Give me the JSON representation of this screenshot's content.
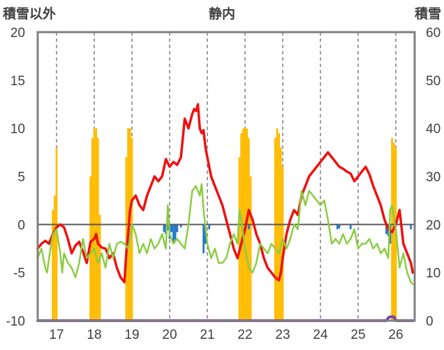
{
  "chart_data": {
    "type": "combo",
    "title": "静内",
    "left_axis_label": "積雪以外",
    "right_axis_label": "積雪",
    "left_ylim": [
      -10,
      20
    ],
    "left_ticks": [
      "-10",
      "-5",
      "0",
      "5",
      "10",
      "15",
      "20"
    ],
    "right_ylim": [
      0,
      60
    ],
    "right_ticks": [
      "0",
      "10",
      "20",
      "30",
      "40",
      "50",
      "60"
    ],
    "x_range": [
      16.5,
      26.5
    ],
    "x_ticks": [
      "17",
      "18",
      "19",
      "20",
      "21",
      "22",
      "23",
      "24",
      "25",
      "26"
    ],
    "grid": "vertical dashed at each day",
    "colors": {
      "red_line": "#ee1111",
      "green_line": "#8ccc44",
      "snow_bars": "#ffbb00",
      "blue_bars": "#2277cc",
      "purple_line": "#7a44a0",
      "axis": "#808080",
      "grid": "#404040"
    },
    "series": [
      {
        "kind": "line",
        "color_key": "red_line",
        "axis": "left",
        "x": [
          16.5,
          16.6,
          16.7,
          16.8,
          16.9,
          17.0,
          17.1,
          17.2,
          17.3,
          17.4,
          17.5,
          17.6,
          17.7,
          17.8,
          17.9,
          18.0,
          18.05,
          18.1,
          18.2,
          18.3,
          18.4,
          18.5,
          18.6,
          18.7,
          18.8,
          18.85,
          18.9,
          18.95,
          19.0,
          19.1,
          19.2,
          19.3,
          19.4,
          19.5,
          19.6,
          19.7,
          19.8,
          19.9,
          20.0,
          20.1,
          20.2,
          20.3,
          20.4,
          20.5,
          20.6,
          20.65,
          20.7,
          20.75,
          20.8,
          20.85,
          20.9,
          20.95,
          21.0,
          21.05,
          21.1,
          21.2,
          21.3,
          21.4,
          21.5,
          21.6,
          21.7,
          21.8,
          21.9,
          22.0,
          22.1,
          22.2,
          22.3,
          22.4,
          22.5,
          22.6,
          22.7,
          22.8,
          22.9,
          22.95,
          23.0,
          23.1,
          23.2,
          23.3,
          23.4,
          23.5,
          23.6,
          23.7,
          23.8,
          23.9,
          24.0,
          24.1,
          24.2,
          24.3,
          24.4,
          24.5,
          24.6,
          24.7,
          24.8,
          24.9,
          25.0,
          25.1,
          25.2,
          25.3,
          25.4,
          25.5,
          25.6,
          25.7,
          25.8,
          25.9,
          26.0,
          26.1,
          26.2,
          26.3,
          26.4,
          26.45
        ],
        "y": [
          -2.5,
          -2.0,
          -1.7,
          -2.0,
          -1.0,
          -0.3,
          0.0,
          -0.3,
          -1.5,
          -3.0,
          -2.2,
          -1.8,
          -2.8,
          -4.0,
          -1.8,
          -1.5,
          -1.0,
          -2.0,
          -2.4,
          -2.5,
          -3.5,
          -3.0,
          -4.5,
          -5.5,
          -6.0,
          -3.0,
          -1.0,
          1.5,
          2.5,
          3.0,
          2.0,
          1.5,
          3.0,
          4.0,
          5.0,
          4.5,
          5.0,
          6.8,
          6.0,
          6.5,
          6.2,
          7.0,
          11.0,
          10.0,
          11.5,
          12.0,
          11.8,
          12.5,
          10.0,
          9.5,
          9.8,
          8.0,
          7.0,
          6.0,
          5.0,
          4.0,
          3.0,
          2.0,
          0.5,
          -1.0,
          -2.5,
          -3.5,
          -2.0,
          -0.5,
          1.5,
          0.5,
          -1.0,
          -2.0,
          -3.5,
          -4.5,
          -5.0,
          -5.5,
          -5.8,
          -5.0,
          -3.5,
          -1.0,
          0.5,
          1.5,
          1.0,
          3.0,
          4.0,
          5.0,
          5.5,
          6.0,
          6.5,
          7.0,
          7.5,
          7.0,
          6.5,
          6.0,
          5.8,
          5.5,
          5.3,
          4.5,
          5.0,
          5.5,
          6.0,
          5.2,
          4.0,
          3.0,
          2.0,
          0.5,
          -0.5,
          -0.8,
          0.0,
          1.5,
          -2.0,
          -3.0,
          -4.0,
          -5.0
        ]
      },
      {
        "kind": "line",
        "color_key": "green_line",
        "axis": "left",
        "x": [
          16.5,
          16.6,
          16.7,
          16.75,
          16.8,
          16.9,
          17.0,
          17.1,
          17.15,
          17.2,
          17.3,
          17.4,
          17.5,
          17.6,
          17.7,
          17.8,
          17.9,
          18.0,
          18.1,
          18.2,
          18.3,
          18.4,
          18.5,
          18.6,
          18.7,
          18.8,
          18.9,
          18.95,
          19.0,
          19.1,
          19.2,
          19.3,
          19.4,
          19.5,
          19.6,
          19.7,
          19.8,
          19.9,
          19.95,
          20.0,
          20.1,
          20.2,
          20.3,
          20.4,
          20.5,
          20.6,
          20.7,
          20.8,
          20.85,
          20.9,
          21.0,
          21.1,
          21.2,
          21.3,
          21.4,
          21.5,
          21.6,
          21.7,
          21.8,
          21.85,
          21.9,
          22.0,
          22.1,
          22.2,
          22.3,
          22.4,
          22.5,
          22.6,
          22.7,
          22.8,
          22.9,
          23.0,
          23.1,
          23.2,
          23.3,
          23.4,
          23.5,
          23.6,
          23.7,
          23.8,
          23.9,
          24.0,
          24.1,
          24.2,
          24.3,
          24.4,
          24.5,
          24.6,
          24.7,
          24.8,
          24.9,
          25.0,
          25.1,
          25.2,
          25.3,
          25.4,
          25.5,
          25.6,
          25.7,
          25.8,
          25.85,
          25.9,
          26.0,
          26.1,
          26.2,
          26.3,
          26.4,
          26.45
        ],
        "y": [
          -3.5,
          -2.5,
          -4.5,
          -5.0,
          -3.5,
          -1.0,
          -0.5,
          -3.0,
          -5.0,
          -3.0,
          -4.0,
          -4.5,
          -5.5,
          -4.0,
          -1.5,
          -3.5,
          -3.0,
          -2.5,
          -4.0,
          -3.0,
          -4.5,
          -2.0,
          -3.5,
          -2.0,
          -1.8,
          -2.0,
          -2.5,
          -1.5,
          0.0,
          -1.0,
          -3.0,
          -2.0,
          -3.0,
          -1.5,
          -2.5,
          -2.0,
          -1.0,
          -2.5,
          2.0,
          -1.0,
          -2.0,
          -1.5,
          -2.0,
          -2.5,
          0.0,
          3.5,
          4.0,
          3.0,
          4.2,
          1.5,
          -2.0,
          -3.5,
          -2.5,
          -4.0,
          -4.0,
          -3.5,
          -2.0,
          -1.0,
          -2.0,
          1.5,
          0.5,
          -2.5,
          -4.5,
          -5.0,
          -4.0,
          -2.0,
          -2.5,
          -3.0,
          -2.0,
          -2.5,
          -3.0,
          -1.5,
          -2.5,
          -1.5,
          0.0,
          -0.5,
          3.5,
          2.0,
          3.5,
          3.0,
          2.5,
          2.0,
          2.5,
          0.5,
          -2.0,
          -1.5,
          -2.0,
          -1.0,
          -2.0,
          -1.5,
          -0.5,
          -2.5,
          -2.0,
          -2.0,
          -1.5,
          -2.5,
          -2.0,
          -3.0,
          -2.5,
          -3.5,
          1.5,
          2.0,
          -0.5,
          -4.5,
          -3.0,
          -5.0,
          -6.0,
          -6.2
        ]
      },
      {
        "kind": "bar",
        "color_key": "snow_bars",
        "axis": "right",
        "x": [
          16.9,
          16.95,
          17.0,
          17.9,
          17.95,
          18.0,
          18.05,
          18.1,
          18.15,
          18.85,
          18.9,
          18.95,
          19.0,
          21.85,
          21.9,
          21.95,
          22.0,
          22.05,
          22.1,
          22.15,
          22.8,
          22.85,
          22.9,
          22.95,
          23.0,
          25.9,
          25.95,
          26.0
        ],
        "values": [
          23,
          26,
          36,
          30,
          38,
          40,
          40,
          38,
          22,
          34,
          40,
          40,
          38,
          34,
          39,
          40,
          40,
          40,
          38,
          30,
          38,
          40,
          39,
          36,
          32,
          38,
          37,
          36
        ]
      },
      {
        "kind": "bar",
        "color_key": "blue_bars",
        "axis": "left",
        "x": [
          19.85,
          19.9,
          19.95,
          20.0,
          20.05,
          20.1,
          20.15,
          20.2,
          20.3,
          20.9,
          20.95,
          21.05,
          22.1,
          24.45,
          24.5,
          24.8,
          25.75,
          25.8,
          25.85,
          26.4
        ],
        "values": [
          -0.8,
          -1.0,
          -0.6,
          -1.5,
          -0.8,
          -1.8,
          -1.6,
          -0.8,
          -0.3,
          -3.0,
          -2.0,
          -0.5,
          -0.5,
          -0.5,
          -0.4,
          -0.5,
          -1.0,
          -1.2,
          -2.0,
          -0.5
        ]
      },
      {
        "kind": "line",
        "color_key": "purple_line",
        "axis": "left",
        "x": [
          16.5,
          25.75,
          25.8,
          25.85,
          25.95,
          26.0,
          26.45
        ],
        "y": [
          -10,
          -10,
          -9.7,
          -9.6,
          -9.6,
          -10,
          -10
        ]
      }
    ]
  }
}
